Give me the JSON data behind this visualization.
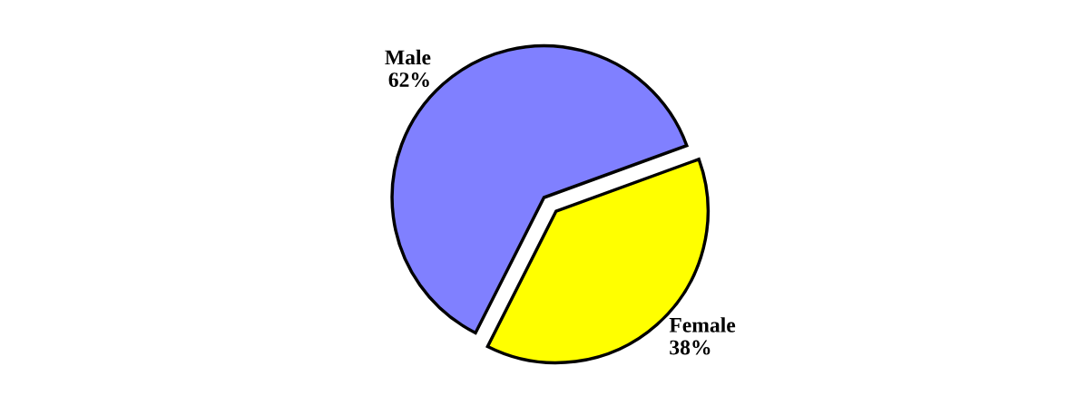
{
  "chart_data": {
    "type": "pie",
    "categories": [
      "Male",
      "Female"
    ],
    "values": [
      62,
      38
    ],
    "colors": [
      "#8080ff",
      "#ffff00"
    ],
    "value_labels": [
      "62%",
      "38%"
    ],
    "legend": false
  }
}
